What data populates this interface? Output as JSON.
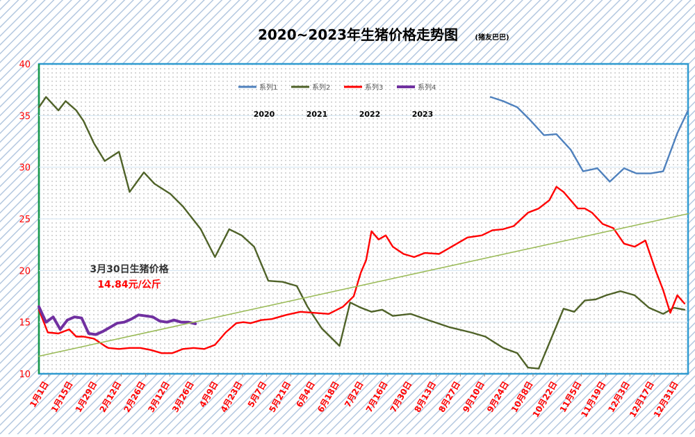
{
  "chart_data": {
    "type": "line",
    "title": "2020~2023年生猪价格走势图",
    "subtitle": "(猪友巴巴)",
    "ylim": [
      10,
      40
    ],
    "y_ticks": [
      "10",
      "15",
      "20",
      "25",
      "30",
      "35",
      "40"
    ],
    "x_ticks": [
      "1月1日",
      "1月15日",
      "1月29日",
      "2月12日",
      "2月26日",
      "3月12日",
      "3月26日",
      "4月9日",
      "4月23日",
      "5月7日",
      "5月21日",
      "6月4日",
      "6月18日",
      "7月2日",
      "7月16日",
      "7月30日",
      "8月13日",
      "8月27日",
      "9月10日",
      "9月24日",
      "10月8日",
      "10月22日",
      "11月5日",
      "11月19日",
      "12月3日",
      "12月17日",
      "12月31日"
    ],
    "legend_position": "top-center",
    "series": [
      {
        "name": "系列1",
        "label": "2020",
        "color": "#4f81bd",
        "x": [
          255,
          262,
          270,
          277,
          285,
          292,
          300,
          307,
          315,
          322,
          330,
          337,
          345,
          352,
          360,
          366
        ],
        "y": [
          36.8,
          36.4,
          35.8,
          34.6,
          33.1,
          33.2,
          31.7,
          29.6,
          29.9,
          28.6,
          29.9,
          29.4,
          29.4,
          29.6,
          33.3,
          35.5
        ]
      },
      {
        "name": "系列2",
        "label": "2021",
        "color": "#4f6228",
        "x": [
          1,
          5,
          12,
          16,
          22,
          26,
          32,
          38,
          46,
          52,
          60,
          66,
          75,
          82,
          92,
          100,
          108,
          115,
          122,
          130,
          138,
          146,
          152,
          160,
          170,
          176,
          182,
          188,
          194,
          200,
          210,
          220,
          232,
          244,
          252,
          262,
          270,
          276,
          282,
          290,
          296,
          302,
          308,
          314,
          320,
          328,
          336,
          344,
          352,
          358,
          364
        ],
        "y": [
          35.8,
          36.8,
          35.5,
          36.4,
          35.5,
          34.5,
          32.3,
          30.6,
          31.5,
          27.6,
          29.5,
          28.4,
          27.4,
          26.2,
          24.0,
          21.3,
          24.0,
          23.4,
          22.3,
          19.0,
          18.9,
          18.5,
          16.5,
          14.4,
          12.7,
          16.9,
          16.4,
          16.0,
          16.2,
          15.6,
          15.8,
          15.2,
          14.5,
          14.0,
          13.6,
          12.5,
          12.0,
          10.6,
          10.5,
          13.8,
          16.3,
          16.0,
          17.1,
          17.2,
          17.6,
          18.0,
          17.6,
          16.4,
          15.8,
          16.4,
          16.2
        ]
      },
      {
        "name": "系列3",
        "label": "2022",
        "color": "#ff0000",
        "x": [
          1,
          6,
          12,
          18,
          22,
          26,
          32,
          38,
          40,
          46,
          52,
          58,
          64,
          70,
          76,
          82,
          88,
          94,
          100,
          106,
          112,
          116,
          120,
          126,
          132,
          140,
          148,
          156,
          164,
          172,
          178,
          182,
          185,
          188,
          192,
          196,
          200,
          206,
          212,
          218,
          226,
          234,
          242,
          250,
          256,
          262,
          268,
          276,
          282,
          288,
          292,
          296,
          300,
          304,
          308,
          312,
          318,
          324,
          330,
          336,
          342,
          348,
          352,
          356,
          360,
          364
        ],
        "y": [
          16.2,
          14.0,
          13.9,
          14.3,
          13.6,
          13.6,
          13.4,
          12.7,
          12.5,
          12.4,
          12.5,
          12.5,
          12.3,
          12.0,
          12.0,
          12.4,
          12.5,
          12.4,
          12.8,
          14.0,
          14.9,
          15.0,
          14.9,
          15.2,
          15.3,
          15.7,
          16.0,
          15.9,
          15.8,
          16.5,
          17.5,
          19.8,
          21.0,
          23.8,
          23.0,
          23.4,
          22.3,
          21.6,
          21.3,
          21.7,
          21.6,
          22.4,
          23.2,
          23.4,
          23.9,
          24.0,
          24.3,
          25.6,
          26.0,
          26.8,
          28.1,
          27.6,
          26.8,
          26.0,
          26.0,
          25.6,
          24.5,
          24.1,
          22.6,
          22.3,
          22.9,
          19.9,
          18.1,
          15.9,
          17.6,
          16.8
        ]
      },
      {
        "name": "系列4",
        "label": "2023",
        "color": "#7030a0",
        "x": [
          1,
          5,
          9,
          13,
          17,
          21,
          25,
          29,
          33,
          37,
          41,
          45,
          49,
          53,
          57,
          61,
          65,
          69,
          73,
          77,
          81,
          85,
          89
        ],
        "y": [
          16.5,
          15.0,
          15.5,
          14.3,
          15.2,
          15.5,
          15.4,
          13.9,
          13.8,
          14.1,
          14.5,
          14.9,
          15.0,
          15.3,
          15.7,
          15.6,
          15.5,
          15.1,
          15.0,
          15.2,
          15.0,
          15.0,
          14.84
        ]
      },
      {
        "name": "",
        "label": "",
        "color": "#9bbb59",
        "trend": true,
        "x": [
          1,
          366
        ],
        "y": [
          11.7,
          25.5
        ]
      }
    ],
    "annotation": {
      "title": "3月30日生猪价格",
      "value": "14.84元/公斤"
    }
  }
}
